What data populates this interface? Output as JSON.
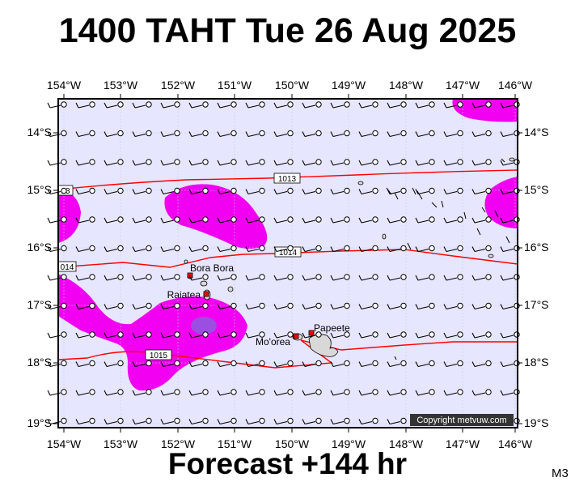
{
  "title": "1400 TAHT Tue 26 Aug 2025",
  "subtitle": "Forecast +144 hr",
  "model": "M3",
  "copyright": "Copyright metvuw.com",
  "longitude_labels": [
    "154°W",
    "153°W",
    "152°W",
    "151°W",
    "150°W",
    "149°W",
    "148°W",
    "147°W",
    "146°W"
  ],
  "latitude_labels": [
    "14°S",
    "15°S",
    "16°S",
    "17°S",
    "18°S",
    "19°S"
  ],
  "places": [
    {
      "name": "Bora Bora"
    },
    {
      "name": "Raiatea"
    },
    {
      "name": "Mo'orea"
    },
    {
      "name": "Papeete"
    }
  ],
  "isobars": [
    {
      "label": "1013"
    },
    {
      "label": "1014"
    },
    {
      "label": "1015"
    }
  ],
  "edge_labels": [
    "13",
    "014"
  ],
  "colors": {
    "background": "#e6e6ff",
    "rain_light": "#f100f1",
    "rain_heavy": "#9a4fe0",
    "isobar": "#ff0000",
    "land": "#d8d8d8"
  }
}
